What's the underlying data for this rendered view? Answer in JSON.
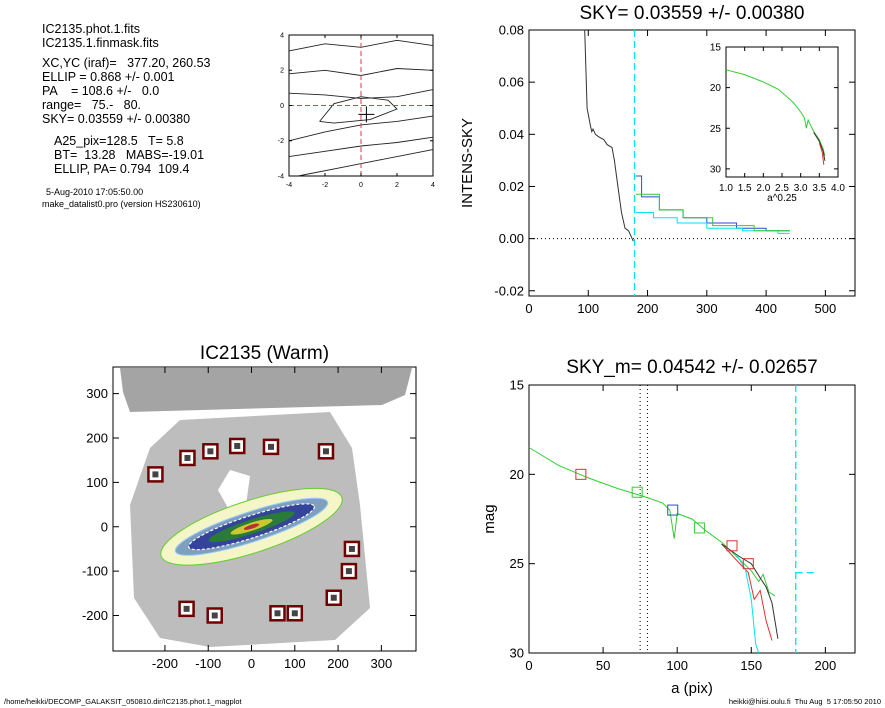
{
  "info": {
    "lines1": [
      "IC2135.phot.1.fits",
      "IC2135.1.finmask.fits"
    ],
    "lines2": [
      "XC,YC (iraf)=   377.20, 260.53",
      "ELLIP = 0.868 +/- 0.001",
      "PA    = 108.6 +/-   0.0",
      "range=   75.-   80.",
      "SKY= 0.03559 +/- 0.00380"
    ],
    "lines3": [
      "A25_pix=128.5   T= 5.8",
      "BT=  13.28   MABS=-19.01",
      "ELLIP, PA= 0.794  109.4"
    ],
    "date": "5-Aug-2010 17:05:50.00",
    "program": "make_datalist0.pro (version HS230610)"
  },
  "footer": {
    "left": "/home/heikki/DECOMP_GALAKSIT_050810.dir/IC2135.phot.1_magplot",
    "right": "heikki@hiisi.oulu.fi  Thu Aug  5 17:05:50 2010"
  },
  "colors": {
    "cyan": "#00e5ee",
    "green": "#33cc33",
    "blue": "#2a4bd7",
    "red": "#e03030",
    "dark": "#333333"
  },
  "chart_data": [
    {
      "id": "contour",
      "type": "line",
      "title": "",
      "xlim": [
        -4,
        4
      ],
      "ylim": [
        -4,
        4
      ],
      "xticks": [
        "-4",
        "-2",
        "0",
        "2",
        "4"
      ],
      "yticks": [
        "-4",
        "-2",
        "0",
        "2",
        "4"
      ],
      "contours": [
        [
          [
            -4,
            3.1
          ],
          [
            -2,
            3.5
          ],
          [
            0,
            3.3
          ],
          [
            2,
            3.7
          ],
          [
            4,
            3.4
          ]
        ],
        [
          [
            -4,
            1.8
          ],
          [
            -2,
            2.0
          ],
          [
            0,
            1.7
          ],
          [
            2,
            2.1
          ],
          [
            4,
            2.0
          ]
        ],
        [
          [
            -4,
            0.7
          ],
          [
            -2,
            0.6
          ],
          [
            0,
            0.4
          ],
          [
            2,
            0.5
          ],
          [
            4,
            0.9
          ]
        ],
        [
          [
            -4,
            -2.0
          ],
          [
            -2,
            -1.5
          ],
          [
            0,
            -1.1
          ],
          [
            2,
            -0.9
          ],
          [
            4,
            -0.6
          ]
        ],
        [
          [
            -4,
            -2.9
          ],
          [
            -2,
            -2.6
          ],
          [
            0,
            -2.3
          ],
          [
            2,
            -2.1
          ],
          [
            4,
            -1.8
          ]
        ],
        [
          [
            -3.5,
            -4
          ],
          [
            -1,
            -3.5
          ],
          [
            1,
            -3.1
          ],
          [
            3,
            -2.7
          ],
          [
            4,
            -2.5
          ]
        ],
        [
          [
            -2.3,
            -0.9
          ],
          [
            -1.5,
            0.1
          ],
          [
            0,
            0.5
          ],
          [
            1.5,
            0.3
          ],
          [
            2,
            -0.2
          ],
          [
            0.5,
            -0.8
          ],
          [
            -1.5,
            -1.0
          ],
          [
            -2.3,
            -0.9
          ]
        ]
      ]
    },
    {
      "id": "intens",
      "type": "line",
      "title": "SKY= 0.03559 +/- 0.00380",
      "xlabel": "",
      "ylabel": "INTENS-SKY",
      "xlim": [
        0,
        550
      ],
      "ylim": [
        -0.022,
        0.08
      ],
      "xticks": [
        "0",
        "100",
        "200",
        "300",
        "400",
        "500"
      ],
      "yticks": [
        "-0.02",
        "0.00",
        "0.02",
        "0.04",
        "0.06",
        "0.08"
      ],
      "sky_radius": 178,
      "series": [
        {
          "color": "dark",
          "points": [
            [
              94,
              0.09
            ],
            [
              98,
              0.05
            ],
            [
              104,
              0.043
            ],
            [
              106,
              0.041
            ],
            [
              108,
              0.042
            ],
            [
              112,
              0.04
            ],
            [
              118,
              0.039
            ],
            [
              126,
              0.038
            ],
            [
              132,
              0.036
            ],
            [
              140,
              0.035
            ],
            [
              144,
              0.03
            ],
            [
              150,
              0.02
            ],
            [
              156,
              0.01
            ],
            [
              162,
              0.004
            ],
            [
              168,
              0.003
            ],
            [
              174,
              0.0
            ],
            [
              176,
              -0.001
            ]
          ]
        },
        {
          "color": "blue",
          "points": [
            [
              180,
              0.024
            ],
            [
              190,
              0.024
            ],
            [
              190,
              0.016
            ],
            [
              220,
              0.016
            ],
            [
              220,
              0.011
            ],
            [
              260,
              0.011
            ],
            [
              260,
              0.008
            ],
            [
              300,
              0.008
            ],
            [
              300,
              0.006
            ],
            [
              350,
              0.006
            ],
            [
              350,
              0.004
            ],
            [
              400,
              0.004
            ],
            [
              400,
              0.003
            ],
            [
              440,
              0.003
            ]
          ]
        },
        {
          "color": "cyan",
          "points": [
            [
              180,
              0.01
            ],
            [
              210,
              0.01
            ],
            [
              210,
              0.008
            ],
            [
              250,
              0.008
            ],
            [
              250,
              0.006
            ],
            [
              300,
              0.006
            ],
            [
              300,
              0.004
            ],
            [
              360,
              0.004
            ],
            [
              360,
              0.003
            ],
            [
              420,
              0.003
            ],
            [
              420,
              0.002
            ],
            [
              440,
              0.002
            ]
          ]
        },
        {
          "color": "green",
          "points": [
            [
              180,
              0.017
            ],
            [
              220,
              0.017
            ],
            [
              220,
              0.011
            ],
            [
              260,
              0.011
            ],
            [
              260,
              0.008
            ],
            [
              310,
              0.008
            ],
            [
              310,
              0.005
            ],
            [
              380,
              0.005
            ],
            [
              380,
              0.003
            ],
            [
              440,
              0.003
            ]
          ]
        }
      ]
    },
    {
      "id": "inset",
      "type": "line",
      "xlabel": "a^0.25",
      "xlim": [
        1.0,
        4.0
      ],
      "ylim": [
        15,
        31
      ],
      "xticks": [
        "1.0",
        "1.5",
        "2.0",
        "2.5",
        "3.0",
        "3.5",
        "4.0"
      ],
      "yticks": [
        "15",
        "20",
        "25",
        "30"
      ],
      "series": [
        {
          "color": "green",
          "points": [
            [
              1.0,
              17.8
            ],
            [
              1.5,
              18.4
            ],
            [
              2.0,
              19.3
            ],
            [
              2.4,
              20.2
            ],
            [
              2.8,
              21.8
            ],
            [
              3.0,
              23.0
            ],
            [
              3.1,
              23.7
            ],
            [
              3.15,
              25.0
            ],
            [
              3.2,
              24.0
            ],
            [
              3.35,
              25.4
            ],
            [
              3.5,
              26.4
            ],
            [
              3.6,
              27.5
            ],
            [
              3.65,
              28.4
            ]
          ]
        },
        {
          "color": "dark",
          "points": [
            [
              3.35,
              25.5
            ],
            [
              3.5,
              26.6
            ],
            [
              3.6,
              27.8
            ],
            [
              3.65,
              29.0
            ]
          ]
        },
        {
          "color": "red",
          "points": [
            [
              3.5,
              26.8
            ],
            [
              3.58,
              28.0
            ],
            [
              3.62,
              29.5
            ]
          ]
        }
      ]
    },
    {
      "id": "image",
      "type": "scatter",
      "title": "IC2135 (Warm)",
      "xlim": [
        -320,
        380
      ],
      "ylim": [
        -280,
        360
      ],
      "xticks": [
        "-200",
        "-100",
        "0",
        "100",
        "200",
        "300"
      ],
      "yticks": [
        "-200",
        "-100",
        "0",
        "100",
        "200",
        "300"
      ],
      "mask_boxes": [
        [
          -222,
          118
        ],
        [
          -148,
          155
        ],
        [
          -95,
          170
        ],
        [
          -33,
          182
        ],
        [
          45,
          180
        ],
        [
          172,
          170
        ],
        [
          232,
          -50
        ],
        [
          225,
          -100
        ],
        [
          190,
          -160
        ],
        [
          -150,
          -185
        ],
        [
          -85,
          -200
        ],
        [
          60,
          -195
        ],
        [
          100,
          -195
        ]
      ]
    },
    {
      "id": "mag",
      "type": "line",
      "title": "SKY_m=  0.04542 +/- 0.02657",
      "xlabel": "a (pix)",
      "ylabel": "mag",
      "xlim": [
        0,
        220
      ],
      "ylim": [
        30,
        15
      ],
      "xticks": [
        "0",
        "50",
        "100",
        "150",
        "200"
      ],
      "yticks": [
        "15",
        "20",
        "25",
        "30"
      ],
      "vlines_dotted": [
        75,
        80
      ],
      "sky_vline": 180,
      "sky_level": 25.5,
      "markers": [
        {
          "color": "red",
          "x": 35,
          "y": 20.0
        },
        {
          "color": "green",
          "x": 73,
          "y": 21.0
        },
        {
          "color": "blue",
          "x": 97,
          "y": 22.0
        },
        {
          "color": "green",
          "x": 115,
          "y": 23.0
        },
        {
          "color": "red",
          "x": 137,
          "y": 24.0
        },
        {
          "color": "red",
          "x": 148,
          "y": 25.0
        }
      ],
      "series": [
        {
          "color": "green",
          "points": [
            [
              0,
              18.5
            ],
            [
              20,
              19.5
            ],
            [
              40,
              20.2
            ],
            [
              60,
              20.8
            ],
            [
              80,
              21.3
            ],
            [
              90,
              21.6
            ],
            [
              95,
              22.0
            ],
            [
              98,
              23.6
            ],
            [
              100,
              22.2
            ],
            [
              110,
              22.5
            ],
            [
              120,
              23.2
            ],
            [
              130,
              23.8
            ],
            [
              140,
              24.6
            ],
            [
              150,
              25.4
            ],
            [
              155,
              26.0
            ],
            [
              158,
              25.6
            ],
            [
              162,
              26.6
            ],
            [
              166,
              26.8
            ]
          ]
        },
        {
          "color": "red",
          "points": [
            [
              130,
              23.9
            ],
            [
              140,
              24.8
            ],
            [
              148,
              25.5
            ],
            [
              152,
              27.0
            ],
            [
              156,
              26.5
            ],
            [
              160,
              28.2
            ],
            [
              164,
              29.3
            ]
          ]
        },
        {
          "color": "dark",
          "points": [
            [
              130,
              23.9
            ],
            [
              142,
              24.6
            ],
            [
              150,
              25.0
            ],
            [
              156,
              25.8
            ],
            [
              160,
              26.3
            ],
            [
              164,
              27.2
            ],
            [
              168,
              29.2
            ]
          ]
        },
        {
          "color": "cyan",
          "points": [
            [
              140,
              24.5
            ],
            [
              146,
              25.3
            ],
            [
              150,
              27.0
            ],
            [
              153,
              29.5
            ],
            [
              155,
              30.0
            ]
          ]
        }
      ]
    }
  ]
}
